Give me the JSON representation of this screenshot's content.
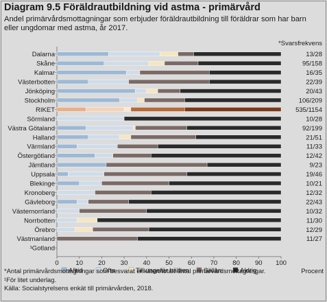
{
  "header": {
    "title": "Diagram 9.5 Föräldrautbildning vid astma - primärvård",
    "subtitle": "Andel primärvårdsmottagningar som erbjuder föräldrautbildning till föräldrar som har barn eller ungdomar med astma, år 2017."
  },
  "colors": {
    "alltid": "#9cb9d6",
    "ofta": "#cfdcea",
    "till_ungefar_halften": "#f6e6c0",
    "sallan": "#7a6a66",
    "aldrig": "#2a2a2a",
    "riket_alltid": "#e8b08a",
    "riket_ofta": "#f4d3b8",
    "riket_till_ungefar_halften": "#f9e8d6",
    "riket_sallan": "#b56a3a",
    "riket_aldrig": "#7a3a1c"
  },
  "chart_data": {
    "type": "bar",
    "orientation": "horizontal",
    "stacked": true,
    "xlabel": "Procent",
    "xlim": [
      0,
      100
    ],
    "xticks": [
      0,
      10,
      20,
      30,
      40,
      50,
      60,
      70,
      80,
      90,
      100
    ],
    "response_header": "*Svarsfrekvens",
    "categories": [
      "Dalarna",
      "Skåne",
      "Kalmar",
      "Västerbotten",
      "Jönköping",
      "Stockholm",
      "RIKET",
      "Sörmland",
      "Västra Götaland",
      "Halland",
      "Värmland",
      "Östergötland",
      "Jämtland",
      "Uppsala",
      "Blekinge",
      "Kronoberg",
      "Gävleborg",
      "Västernorrland",
      "Norrbotten",
      "Örebro",
      "Västmanland",
      "¹Gotland"
    ],
    "response_rates": [
      "13/28",
      "95/158",
      "16/35",
      "22/39",
      "20/43",
      "106/209",
      "535/1154",
      "10/28",
      "92/199",
      "21/51",
      "11/33",
      "12/42",
      "9/23",
      "19/46",
      "10/21",
      "12/32",
      "22/43",
      "10/32",
      "11/30",
      "12/29",
      "11/27",
      ""
    ],
    "series": [
      {
        "name": "Alltid",
        "values": [
          23,
          21,
          31,
          14,
          35,
          28,
          13,
          0,
          13,
          14,
          9,
          17,
          22,
          5,
          10,
          0,
          9,
          0,
          0,
          0,
          0,
          0
        ]
      },
      {
        "name": "Ofta",
        "values": [
          23,
          20,
          6,
          18,
          5,
          8,
          17,
          30,
          21,
          14,
          18,
          8,
          0,
          16,
          10,
          17,
          5,
          10,
          9,
          8,
          0,
          0
        ]
      },
      {
        "name": "Till ungefär hälften",
        "values": [
          8,
          7,
          0,
          0,
          5,
          3,
          3,
          0,
          1,
          5,
          0,
          0,
          0,
          0,
          0,
          0,
          0,
          0,
          9,
          8,
          0,
          0
        ]
      },
      {
        "name": "Sällan",
        "values": [
          7,
          15,
          31,
          36,
          10,
          18,
          24,
          0,
          23,
          29,
          18,
          17,
          45,
          37,
          30,
          25,
          18,
          30,
          0,
          25,
          36,
          0
        ]
      },
      {
        "name": "Aldrig",
        "values": [
          39,
          37,
          32,
          32,
          45,
          43,
          43,
          70,
          42,
          38,
          55,
          58,
          33,
          42,
          50,
          58,
          68,
          60,
          82,
          59,
          64,
          0
        ]
      }
    ],
    "highlight_category": "RIKET"
  },
  "notes": {
    "line1": "*Antal primärvårdsmottagningar som besvarat enkäten/totalt antal primärvårdsmottagningar.",
    "line2": "¹För litet underlag.",
    "line3": "Källa: Socialstyrelsens enkät till primärvården, 2018."
  }
}
